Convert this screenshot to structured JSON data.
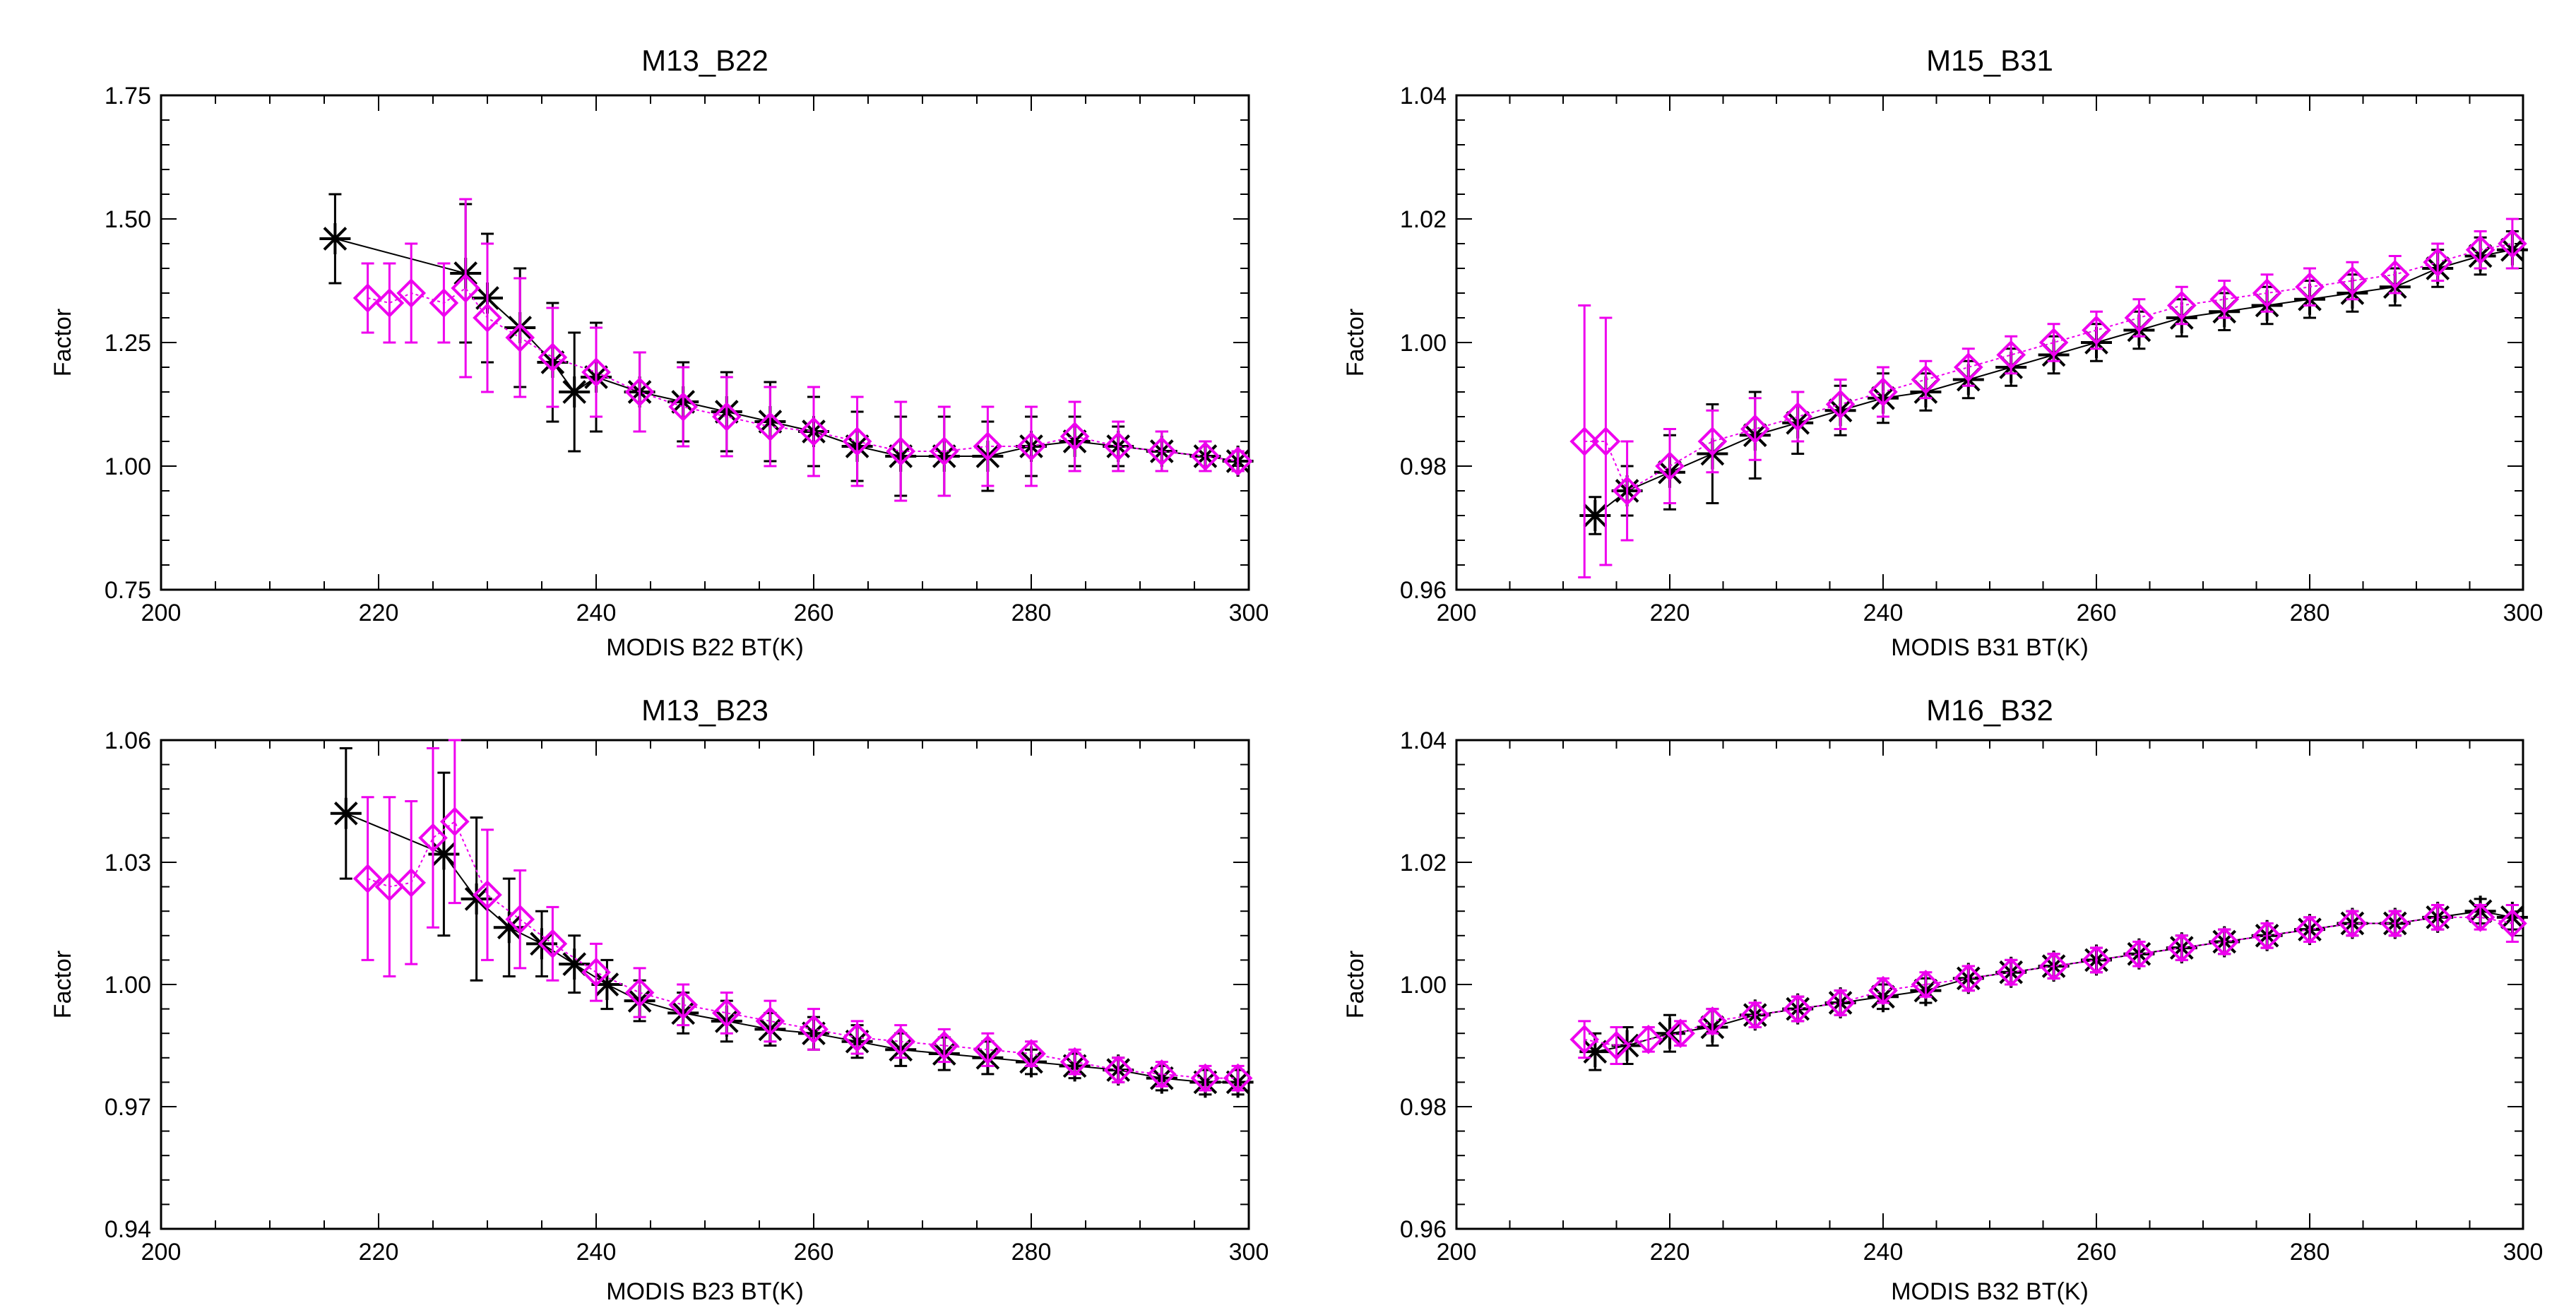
{
  "chart_data": [
    {
      "type": "scatter",
      "title": "M13_B22",
      "xlabel": "MODIS B22 BT(K)",
      "ylabel": "Factor",
      "xlim": [
        200,
        300
      ],
      "ylim": [
        0.75,
        1.75
      ],
      "xticks": [
        "200",
        "220",
        "240",
        "260",
        "280",
        "300"
      ],
      "yticks": [
        "0.75",
        "1.00",
        "1.25",
        "1.50",
        "1.75"
      ],
      "series": [
        {
          "name": "black",
          "color": "#000000",
          "marker": "asterisk",
          "x": [
            216,
            228,
            230,
            233,
            236,
            238,
            240,
            244,
            248,
            252,
            256,
            260,
            264,
            268,
            272,
            276,
            280,
            284,
            288,
            292,
            296,
            299
          ],
          "y": [
            1.46,
            1.39,
            1.34,
            1.28,
            1.21,
            1.15,
            1.18,
            1.15,
            1.13,
            1.11,
            1.09,
            1.07,
            1.04,
            1.02,
            1.02,
            1.02,
            1.04,
            1.05,
            1.04,
            1.03,
            1.02,
            1.01
          ],
          "err": [
            0.09,
            0.14,
            0.13,
            0.12,
            0.12,
            0.12,
            0.11,
            0.08,
            0.08,
            0.08,
            0.08,
            0.07,
            0.07,
            0.08,
            0.08,
            0.07,
            0.06,
            0.05,
            0.04,
            0.04,
            0.03,
            0.02
          ]
        },
        {
          "name": "magenta",
          "color": "#ee00ee",
          "marker": "diamond",
          "x": [
            219,
            221,
            223,
            226,
            228,
            230,
            233,
            236,
            240,
            244,
            248,
            252,
            256,
            260,
            264,
            268,
            272,
            276,
            280,
            284,
            288,
            292,
            296,
            299
          ],
          "y": [
            1.34,
            1.33,
            1.35,
            1.33,
            1.36,
            1.3,
            1.26,
            1.22,
            1.19,
            1.15,
            1.12,
            1.1,
            1.08,
            1.07,
            1.05,
            1.03,
            1.03,
            1.04,
            1.04,
            1.06,
            1.04,
            1.03,
            1.02,
            1.01
          ],
          "err": [
            0.07,
            0.08,
            0.1,
            0.08,
            0.18,
            0.15,
            0.12,
            0.1,
            0.09,
            0.08,
            0.08,
            0.08,
            0.08,
            0.09,
            0.09,
            0.1,
            0.09,
            0.08,
            0.08,
            0.07,
            0.05,
            0.04,
            0.03,
            0.02
          ]
        }
      ]
    },
    {
      "type": "scatter",
      "title": "M15_B31",
      "xlabel": "MODIS B31 BT(K)",
      "ylabel": "Factor",
      "xlim": [
        200,
        300
      ],
      "ylim": [
        0.96,
        1.04
      ],
      "xticks": [
        "200",
        "220",
        "240",
        "260",
        "280",
        "300"
      ],
      "yticks": [
        "0.96",
        "0.98",
        "1.00",
        "1.02",
        "1.04"
      ],
      "series": [
        {
          "name": "black",
          "color": "#000000",
          "marker": "asterisk",
          "x": [
            213,
            216,
            220,
            224,
            228,
            232,
            236,
            240,
            244,
            248,
            252,
            256,
            260,
            264,
            268,
            272,
            276,
            280,
            284,
            288,
            292,
            296,
            299
          ],
          "y": [
            0.972,
            0.976,
            0.979,
            0.982,
            0.985,
            0.987,
            0.989,
            0.991,
            0.992,
            0.994,
            0.996,
            0.998,
            1.0,
            1.002,
            1.004,
            1.005,
            1.006,
            1.007,
            1.008,
            1.009,
            1.012,
            1.014,
            1.015
          ],
          "err": [
            0.003,
            0.004,
            0.006,
            0.008,
            0.007,
            0.005,
            0.004,
            0.004,
            0.003,
            0.003,
            0.003,
            0.003,
            0.003,
            0.003,
            0.003,
            0.003,
            0.003,
            0.003,
            0.003,
            0.003,
            0.003,
            0.003,
            0.003
          ]
        },
        {
          "name": "magenta",
          "color": "#ee00ee",
          "marker": "diamond",
          "x": [
            212,
            214,
            216,
            220,
            224,
            228,
            232,
            236,
            240,
            244,
            248,
            252,
            256,
            260,
            264,
            268,
            272,
            276,
            280,
            284,
            288,
            292,
            296,
            299
          ],
          "y": [
            0.984,
            0.984,
            0.976,
            0.98,
            0.984,
            0.986,
            0.988,
            0.99,
            0.992,
            0.994,
            0.996,
            0.998,
            1.0,
            1.002,
            1.004,
            1.006,
            1.007,
            1.008,
            1.009,
            1.01,
            1.011,
            1.013,
            1.015,
            1.016
          ],
          "err": [
            0.022,
            0.02,
            0.008,
            0.006,
            0.005,
            0.005,
            0.004,
            0.004,
            0.004,
            0.003,
            0.003,
            0.003,
            0.003,
            0.003,
            0.003,
            0.003,
            0.003,
            0.003,
            0.003,
            0.003,
            0.003,
            0.003,
            0.003,
            0.004
          ]
        }
      ]
    },
    {
      "type": "scatter",
      "title": "M13_B23",
      "xlabel": "MODIS B23 BT(K)",
      "ylabel": "Factor",
      "xlim": [
        200,
        300
      ],
      "ylim": [
        0.94,
        1.06
      ],
      "xticks": [
        "200",
        "220",
        "240",
        "260",
        "280",
        "300"
      ],
      "yticks": [
        "0.94",
        "0.97",
        "1.00",
        "1.03",
        "1.06"
      ],
      "series": [
        {
          "name": "black",
          "color": "#000000",
          "marker": "asterisk",
          "x": [
            217,
            226,
            229,
            232,
            235,
            238,
            241,
            244,
            248,
            252,
            256,
            260,
            264,
            268,
            272,
            276,
            280,
            284,
            288,
            292,
            296,
            299
          ],
          "y": [
            1.042,
            1.032,
            1.021,
            1.014,
            1.01,
            1.005,
            1.0,
            0.996,
            0.993,
            0.991,
            0.989,
            0.988,
            0.986,
            0.984,
            0.983,
            0.982,
            0.981,
            0.98,
            0.979,
            0.977,
            0.976,
            0.976
          ],
          "err": [
            0.016,
            0.02,
            0.02,
            0.012,
            0.008,
            0.007,
            0.006,
            0.005,
            0.005,
            0.005,
            0.004,
            0.004,
            0.004,
            0.004,
            0.004,
            0.004,
            0.003,
            0.003,
            0.003,
            0.003,
            0.003,
            0.003
          ]
        },
        {
          "name": "magenta",
          "color": "#ee00ee",
          "marker": "diamond",
          "x": [
            219,
            221,
            223,
            225,
            227,
            230,
            233,
            236,
            240,
            244,
            248,
            252,
            256,
            260,
            264,
            268,
            272,
            276,
            280,
            284,
            288,
            292,
            296,
            299
          ],
          "y": [
            1.026,
            1.024,
            1.025,
            1.036,
            1.04,
            1.022,
            1.016,
            1.01,
            1.003,
            0.998,
            0.995,
            0.993,
            0.991,
            0.989,
            0.987,
            0.986,
            0.985,
            0.984,
            0.983,
            0.981,
            0.979,
            0.978,
            0.977,
            0.977
          ],
          "err": [
            0.02,
            0.022,
            0.02,
            0.022,
            0.02,
            0.016,
            0.012,
            0.009,
            0.007,
            0.006,
            0.005,
            0.005,
            0.005,
            0.005,
            0.004,
            0.004,
            0.004,
            0.004,
            0.003,
            0.003,
            0.003,
            0.003,
            0.003,
            0.003
          ]
        }
      ]
    },
    {
      "type": "scatter",
      "title": "M16_B32",
      "xlabel": "MODIS B32 BT(K)",
      "ylabel": "Factor",
      "xlim": [
        200,
        300
      ],
      "ylim": [
        0.96,
        1.04
      ],
      "xticks": [
        "200",
        "220",
        "240",
        "260",
        "280",
        "300"
      ],
      "yticks": [
        "0.96",
        "0.98",
        "1.00",
        "1.02",
        "1.04"
      ],
      "series": [
        {
          "name": "black",
          "color": "#000000",
          "marker": "asterisk",
          "x": [
            213,
            216,
            220,
            224,
            228,
            232,
            236,
            240,
            244,
            248,
            252,
            256,
            260,
            264,
            268,
            272,
            276,
            280,
            284,
            288,
            292,
            296,
            299
          ],
          "y": [
            0.989,
            0.99,
            0.992,
            0.993,
            0.995,
            0.996,
            0.997,
            0.998,
            0.999,
            1.001,
            1.002,
            1.003,
            1.004,
            1.005,
            1.006,
            1.007,
            1.008,
            1.009,
            1.01,
            1.01,
            1.011,
            1.012,
            1.011
          ],
          "err": [
            0.003,
            0.003,
            0.003,
            0.003,
            0.002,
            0.002,
            0.002,
            0.002,
            0.002,
            0.002,
            0.002,
            0.002,
            0.002,
            0.002,
            0.002,
            0.002,
            0.002,
            0.002,
            0.002,
            0.002,
            0.002,
            0.002,
            0.002
          ]
        },
        {
          "name": "magenta",
          "color": "#ee00ee",
          "marker": "diamond",
          "x": [
            212,
            215,
            218,
            221,
            224,
            228,
            232,
            236,
            240,
            244,
            248,
            252,
            256,
            260,
            264,
            268,
            272,
            276,
            280,
            284,
            288,
            292,
            296,
            299
          ],
          "y": [
            0.991,
            0.99,
            0.991,
            0.992,
            0.994,
            0.995,
            0.996,
            0.997,
            0.999,
            1.0,
            1.001,
            1.002,
            1.003,
            1.004,
            1.005,
            1.006,
            1.007,
            1.008,
            1.009,
            1.01,
            1.01,
            1.011,
            1.011,
            1.01
          ],
          "err": [
            0.003,
            0.003,
            0.002,
            0.002,
            0.002,
            0.002,
            0.002,
            0.002,
            0.002,
            0.002,
            0.002,
            0.002,
            0.002,
            0.002,
            0.002,
            0.002,
            0.002,
            0.002,
            0.002,
            0.002,
            0.002,
            0.002,
            0.002,
            0.003
          ]
        }
      ]
    }
  ]
}
